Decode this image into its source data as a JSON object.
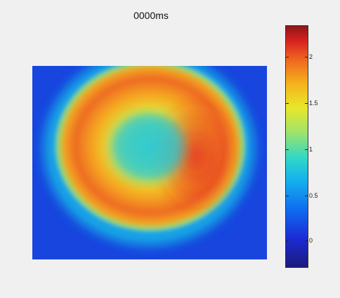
{
  "title": "0000ms",
  "chart_data": {
    "type": "heatmap",
    "title": "0000ms",
    "colormap": "jet",
    "colorbar": {
      "range": [
        -0.25,
        2.3
      ],
      "ticks": [
        {
          "value": 0,
          "label": "0"
        },
        {
          "value": 0.5,
          "label": "0.5"
        },
        {
          "value": 1,
          "label": "1"
        },
        {
          "value": 1.5,
          "label": "1.5"
        },
        {
          "value": 2,
          "label": "2"
        }
      ]
    },
    "field": {
      "background_value": 0.05,
      "ring_peak_value": 1.9,
      "center_value": 0.8,
      "max_value_right_side": 2.2
    }
  }
}
